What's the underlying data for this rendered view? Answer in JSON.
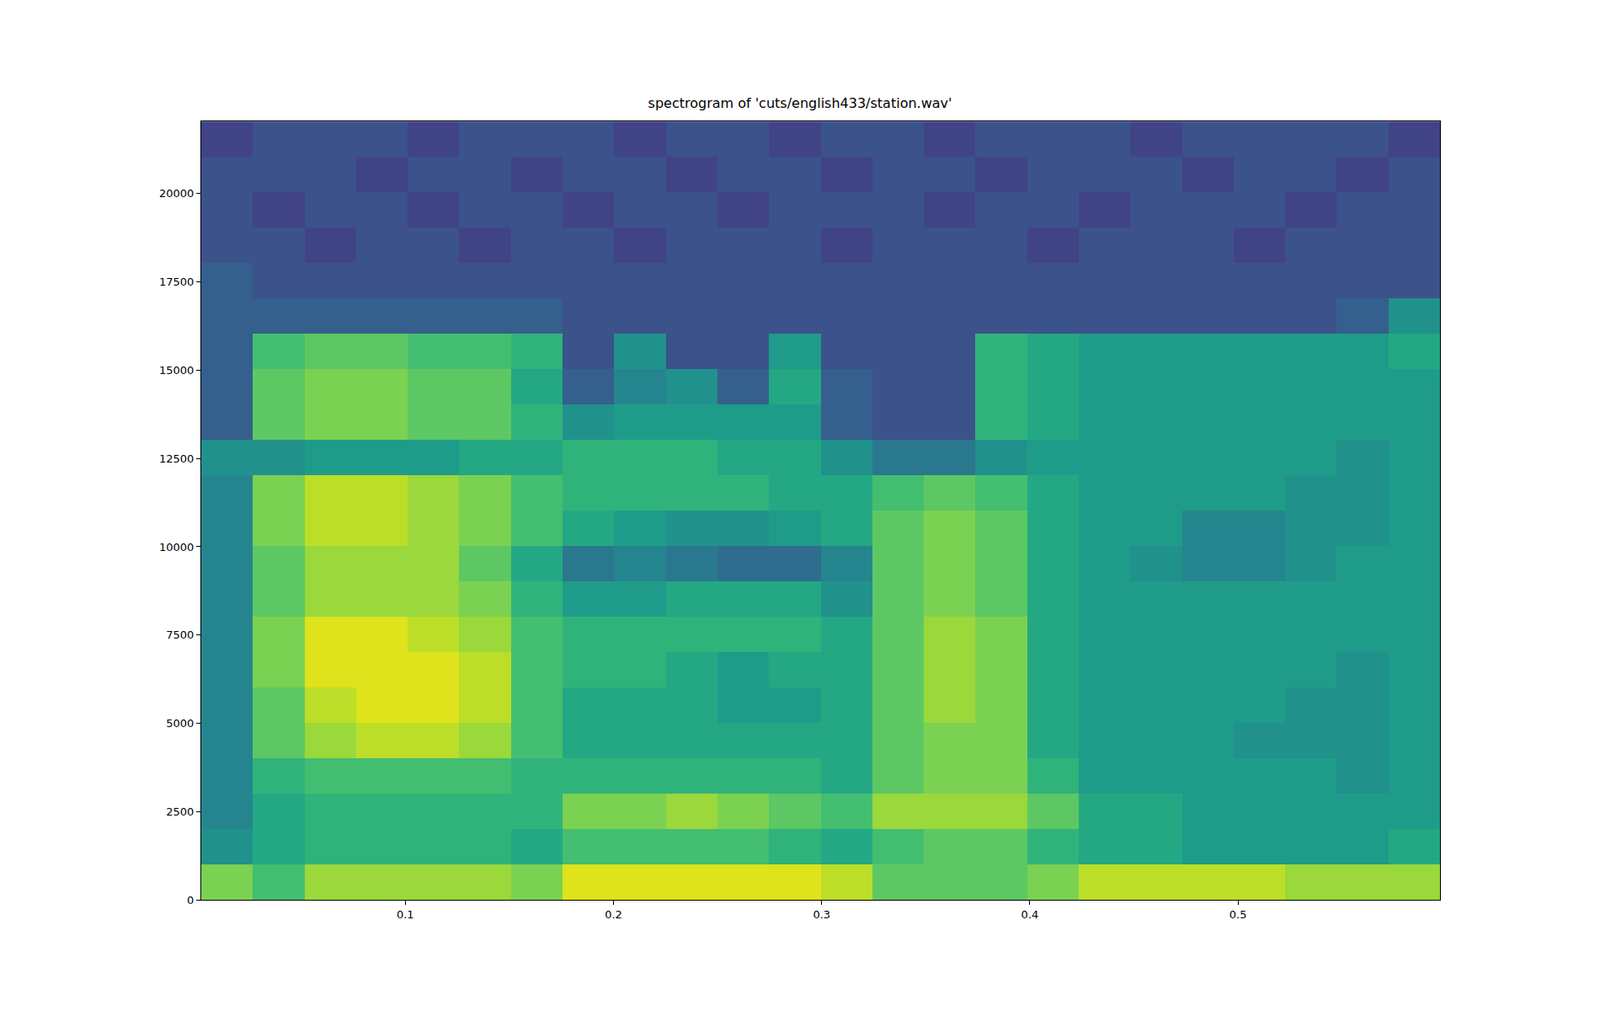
{
  "chart_data": {
    "type": "heatmap",
    "title": "spectrogram of 'cuts/english433/station.wav'",
    "x": [
      0.0144,
      0.0392,
      0.064,
      0.0888,
      0.1136,
      0.1384,
      0.1632,
      0.188,
      0.2128,
      0.2376,
      0.2624,
      0.2872,
      0.312,
      0.3368,
      0.3616,
      0.3864,
      0.4112,
      0.436,
      0.4608,
      0.4856,
      0.5104,
      0.5352,
      0.56,
      0.5848
    ],
    "y": [
      501,
      1503,
      2505,
      3507,
      4509,
      5511,
      6513,
      7515,
      8517,
      9519,
      10521,
      11523,
      12525,
      13527,
      14529,
      15531,
      16533,
      17535,
      18537,
      19539,
      20541,
      21543
    ],
    "z": [
      [
        8,
        7,
        8.5,
        8.5,
        8.5,
        8.5,
        8,
        9.5,
        9.5,
        9.5,
        9.5,
        9.5,
        9,
        7.5,
        7.5,
        7.5,
        8,
        9,
        9,
        9,
        9,
        8.5,
        8.5,
        8.5
      ],
      [
        5,
        6,
        6.5,
        6.5,
        6.5,
        6.5,
        6,
        7,
        7,
        7,
        7,
        6.5,
        6,
        7,
        7.5,
        7.5,
        6.5,
        6,
        6,
        5.5,
        5.5,
        5.5,
        5.5,
        6
      ],
      [
        4.5,
        6,
        6.5,
        6.5,
        6.5,
        6.5,
        6.5,
        8,
        8,
        8.5,
        8,
        7.5,
        7,
        8.5,
        8.5,
        8.5,
        7.5,
        6,
        6,
        5.5,
        5.5,
        5.5,
        5.5,
        5.5
      ],
      [
        4.5,
        6.5,
        7,
        7,
        7,
        7,
        6.5,
        6.5,
        6.5,
        6.5,
        6.5,
        6.5,
        6,
        7.5,
        8,
        8,
        6.5,
        5.5,
        5.5,
        5.5,
        5.5,
        5.5,
        5,
        5.5
      ],
      [
        4.5,
        7.5,
        8.5,
        9,
        9,
        8.5,
        7,
        6,
        6,
        6,
        6,
        6,
        6,
        7.5,
        8,
        8,
        6,
        5.5,
        5.5,
        5.5,
        5,
        5,
        5,
        5.5
      ],
      [
        4.5,
        7.5,
        9,
        9.5,
        9.5,
        9,
        7,
        6,
        6,
        6,
        5.5,
        5.5,
        6,
        7.5,
        8.5,
        8,
        6,
        5.5,
        5.5,
        5.5,
        5.5,
        5,
        5,
        5.5
      ],
      [
        4.5,
        8,
        9.5,
        9.5,
        9.5,
        9,
        7,
        6.5,
        6.5,
        6,
        5.5,
        6,
        6,
        7.5,
        8.5,
        8,
        6,
        5.5,
        5.5,
        5.5,
        5.5,
        5.5,
        5,
        5.5
      ],
      [
        4.5,
        8,
        9.5,
        9.5,
        9,
        8.5,
        7,
        6.5,
        6.5,
        6.5,
        6.5,
        6.5,
        6,
        7.5,
        8.5,
        8,
        6,
        5.5,
        5.5,
        5.5,
        5.5,
        5.5,
        5.5,
        5.5
      ],
      [
        4.5,
        7.5,
        8.5,
        8.5,
        8.5,
        8,
        6.5,
        5.5,
        5.5,
        6,
        6,
        6,
        5,
        7.5,
        8,
        7.5,
        6,
        5.5,
        5.5,
        5.5,
        5.5,
        5.5,
        5.5,
        5.5
      ],
      [
        4.5,
        7.5,
        8.5,
        8.5,
        8.5,
        7.5,
        6,
        4,
        4.5,
        4,
        3.5,
        3.5,
        4.5,
        7.5,
        8,
        7.5,
        6,
        5.5,
        5,
        4.5,
        4.5,
        5,
        5.5,
        5.5
      ],
      [
        4.5,
        8,
        9,
        9,
        8.5,
        8,
        7,
        6,
        5.5,
        5,
        5,
        5.5,
        6,
        7.5,
        8,
        7.5,
        6,
        5.5,
        5.5,
        4.5,
        4.5,
        5,
        5,
        5.5
      ],
      [
        4.5,
        8,
        9,
        9,
        8.5,
        8,
        7,
        6.5,
        6.5,
        6.5,
        6.5,
        6,
        6,
        7,
        7.5,
        7,
        6,
        5.5,
        5.5,
        5.5,
        5.5,
        5,
        5,
        5.5
      ],
      [
        5,
        5,
        5.5,
        5.5,
        5.5,
        6,
        6,
        6.5,
        6.5,
        6.5,
        6,
        6,
        5,
        4,
        4,
        5,
        5.5,
        5.5,
        5.5,
        5.5,
        5.5,
        5.5,
        5,
        5.5
      ],
      [
        3,
        7.5,
        8,
        8,
        7.5,
        7.5,
        6.5,
        5,
        5.5,
        5.5,
        5.5,
        5.5,
        3,
        2.5,
        2.5,
        6.5,
        6,
        5.5,
        5.5,
        5.5,
        5.5,
        5.5,
        5.5,
        5.5
      ],
      [
        3,
        7.5,
        8,
        8,
        7.5,
        7.5,
        6,
        3,
        4.5,
        5,
        3,
        6,
        3,
        2.5,
        2.5,
        6.5,
        6,
        5.5,
        5.5,
        5.5,
        5.5,
        5.5,
        5.5,
        5.5
      ],
      [
        3,
        7,
        7.5,
        7.5,
        7,
        7,
        6.5,
        2.5,
        5,
        2.5,
        2.5,
        5.5,
        2.5,
        2.5,
        2.5,
        6.5,
        6,
        5.5,
        5.5,
        5.5,
        5.5,
        5.5,
        5.5,
        6
      ],
      [
        3,
        3,
        3,
        3,
        3,
        3,
        3,
        2.5,
        2.5,
        2.5,
        2.5,
        2.5,
        2.5,
        2.5,
        2.5,
        2.5,
        2.5,
        2.5,
        2.5,
        2.5,
        2.5,
        2.5,
        3,
        5
      ],
      [
        3,
        2.5,
        2.5,
        2.5,
        2.5,
        2.5,
        2.5,
        2.5,
        2.5,
        2.5,
        2.5,
        2.5,
        2.5,
        2.5,
        2.5,
        2.5,
        2.5,
        2.5,
        2.5,
        2.5,
        2.5,
        2.5,
        2.5,
        2.5
      ],
      [
        2.5,
        2.5,
        2,
        2.5,
        2.5,
        2,
        2.5,
        2.5,
        2,
        2.5,
        2.5,
        2.5,
        2,
        2.5,
        2.5,
        2.5,
        2,
        2.5,
        2.5,
        2.5,
        2,
        2.5,
        2.5,
        2.5
      ],
      [
        2.5,
        2,
        2.5,
        2.5,
        2,
        2.5,
        2.5,
        2,
        2.5,
        2.5,
        2,
        2.5,
        2.5,
        2.5,
        2,
        2.5,
        2.5,
        2,
        2.5,
        2.5,
        2.5,
        2,
        2.5,
        2.5
      ],
      [
        2.5,
        2.5,
        2.5,
        2,
        2.5,
        2.5,
        2,
        2.5,
        2.5,
        2,
        2.5,
        2.5,
        2,
        2.5,
        2.5,
        2,
        2.5,
        2.5,
        2.5,
        2,
        2.5,
        2.5,
        2,
        2.5
      ],
      [
        2,
        2.5,
        2.5,
        2.5,
        2,
        2.5,
        2.5,
        2.5,
        2,
        2.5,
        2.5,
        2,
        2.5,
        2.5,
        2,
        2.5,
        2.5,
        2.5,
        2,
        2.5,
        2.5,
        2.5,
        2.5,
        2
      ]
    ],
    "zlim": [
      0,
      10
    ],
    "xlim": [
      0.002,
      0.597
    ],
    "ylim": [
      0,
      22050
    ],
    "xticks": [
      0.1,
      0.2,
      0.3,
      0.4,
      0.5
    ],
    "yticks": [
      0,
      2500,
      5000,
      7500,
      10000,
      12500,
      15000,
      17500,
      20000
    ]
  }
}
